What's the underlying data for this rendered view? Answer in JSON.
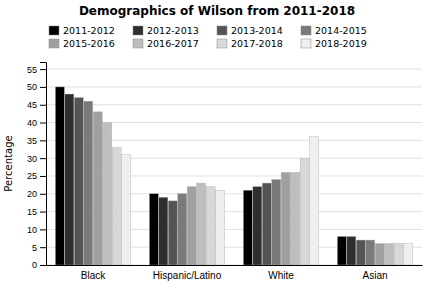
{
  "chart_data": {
    "type": "bar",
    "title": "Demographics of Wilson from 2011-2018",
    "categories": [
      "Black",
      "Hispanic/Latino",
      "White",
      "Asian"
    ],
    "series": [
      {
        "name": "2011-2012",
        "color": "#000000",
        "values": [
          50,
          20,
          21,
          8
        ]
      },
      {
        "name": "2012-2013",
        "color": "#2e2e2e",
        "values": [
          48,
          19,
          22,
          8
        ]
      },
      {
        "name": "2013-2014",
        "color": "#545454",
        "values": [
          47,
          18,
          23,
          7
        ]
      },
      {
        "name": "2014-2015",
        "color": "#7a7a7a",
        "values": [
          46,
          20,
          24,
          7
        ]
      },
      {
        "name": "2015-2016",
        "color": "#a0a0a0",
        "values": [
          43,
          22,
          26,
          6
        ]
      },
      {
        "name": "2016-2017",
        "color": "#bebebe",
        "values": [
          40,
          23,
          26,
          6
        ]
      },
      {
        "name": "2017-2018",
        "color": "#d8d8d8",
        "values": [
          33,
          22,
          30,
          6
        ]
      },
      {
        "name": "2018-2019",
        "color": "#efefef",
        "values": [
          31,
          21,
          36,
          6
        ]
      }
    ],
    "ylabel": "Percentage",
    "ylim": [
      0,
      57
    ],
    "yticks": [
      0,
      5,
      10,
      15,
      20,
      25,
      30,
      35,
      40,
      45,
      50,
      55
    ],
    "grid": true,
    "legend": "top"
  }
}
